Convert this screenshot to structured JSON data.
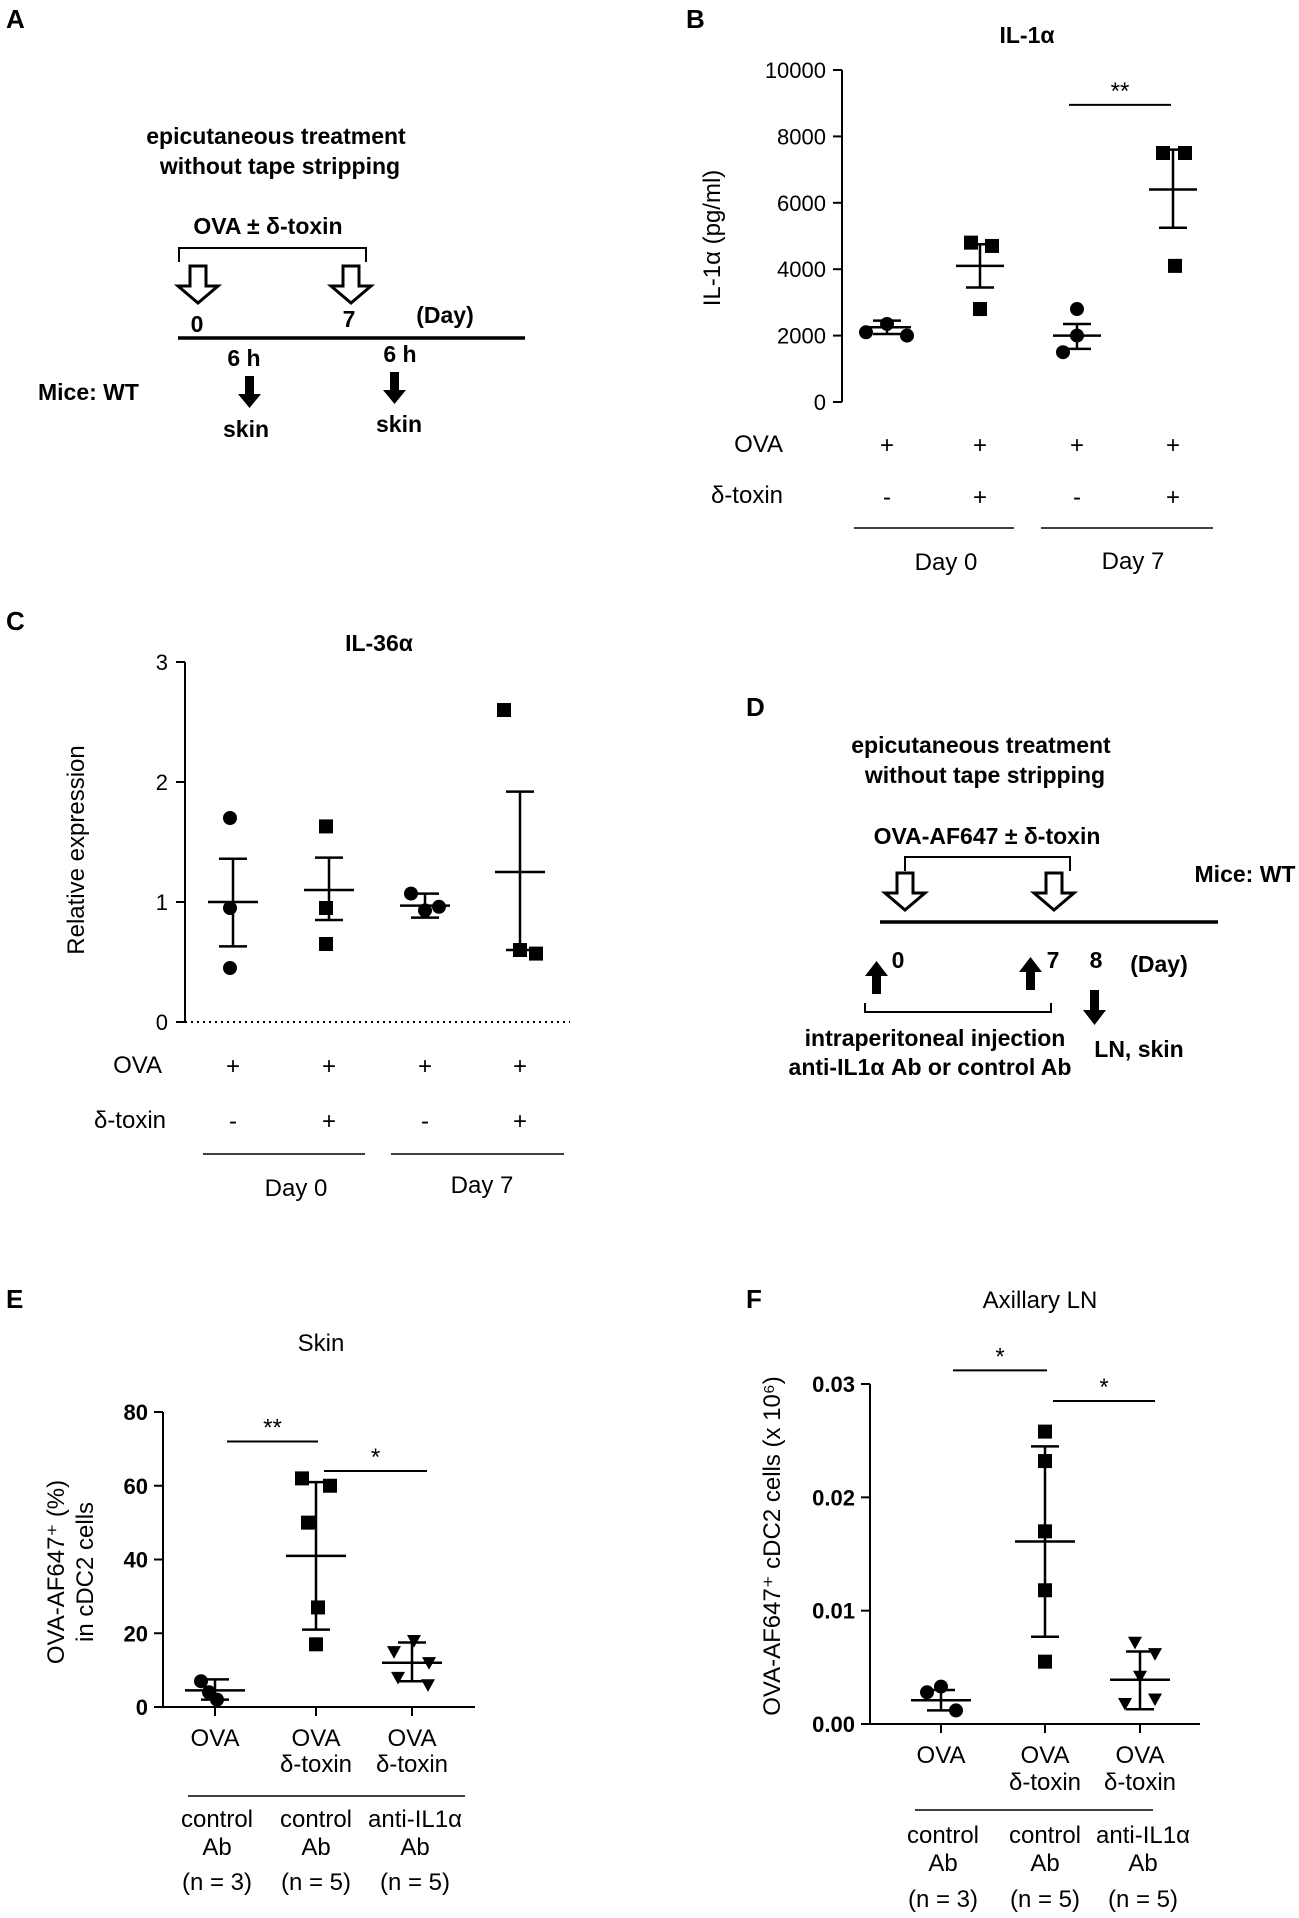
{
  "panel_labels": {
    "a": "A",
    "b": "B",
    "c": "C",
    "d": "D",
    "e": "E",
    "f": "F"
  },
  "schemes": {
    "a": {
      "title_line1": "epicutaneous treatment",
      "title_line2": "without tape stripping",
      "treatment": "OVA ± δ-toxin",
      "days": [
        "0",
        "7"
      ],
      "day_unit": "(Day)",
      "sample_times": [
        "6 h",
        "6 h"
      ],
      "sample_labels": [
        "skin",
        "skin"
      ],
      "mice": "Mice: WT"
    },
    "d": {
      "title_line1": "epicutaneous treatment",
      "title_line2": "without tape stripping",
      "treatment": "OVA-AF647 ± δ-toxin",
      "mice": "Mice: WT",
      "days": [
        "0",
        "7",
        "8"
      ],
      "day_unit": "(Day)",
      "injection_line1": "intraperitoneal injection",
      "injection_line2": "anti-IL1α Ab or control Ab",
      "sample": "LN, skin"
    }
  },
  "chart_data": [
    {
      "id": "B",
      "type": "scatter",
      "title": "IL-1α",
      "ylabel": "IL-1α (pg/ml)",
      "ylim": [
        0,
        10000
      ],
      "yticks": [
        "0",
        "2000",
        "4000",
        "6000",
        "8000",
        "10000"
      ],
      "rows": [
        {
          "label": "OVA",
          "values": [
            "+",
            "+",
            "+",
            "+"
          ]
        },
        {
          "label": "δ-toxin",
          "values": [
            "-",
            "+",
            "-",
            "+"
          ]
        }
      ],
      "groups": [
        "Day 0",
        "Day 7"
      ],
      "marker": [
        "circle",
        "square",
        "circle",
        "square"
      ],
      "points": [
        [
          2100,
          2350,
          2000
        ],
        [
          4800,
          4700,
          2800
        ],
        [
          2800,
          1500,
          2000
        ],
        [
          7500,
          7500,
          4100
        ]
      ],
      "mean": [
        2250,
        4100,
        2000,
        6400
      ],
      "error": [
        [
          2050,
          2450
        ],
        [
          3450,
          4750
        ],
        [
          1600,
          2350
        ],
        [
          5250,
          7600
        ]
      ],
      "significance": [
        {
          "from": 2,
          "to": 3,
          "label": "**",
          "y": 8950
        }
      ]
    },
    {
      "id": "C",
      "type": "scatter",
      "title": "IL-36α",
      "ylabel": "Relative expression",
      "ylim": [
        0,
        3
      ],
      "yticks": [
        "0",
        "1",
        "2",
        "3"
      ],
      "rows": [
        {
          "label": "OVA",
          "values": [
            "+",
            "+",
            "+",
            "+"
          ]
        },
        {
          "label": "δ-toxin",
          "values": [
            "-",
            "+",
            "-",
            "+"
          ]
        }
      ],
      "groups": [
        "Day 0",
        "Day 7"
      ],
      "marker": [
        "circle",
        "square",
        "circle",
        "square"
      ],
      "points": [
        [
          1.7,
          0.95,
          0.45
        ],
        [
          1.63,
          0.95,
          0.65
        ],
        [
          1.07,
          0.93,
          0.96
        ],
        [
          2.6,
          0.6,
          0.57
        ]
      ],
      "mean": [
        1.0,
        1.1,
        0.97,
        1.25
      ],
      "error": [
        [
          0.63,
          1.36
        ],
        [
          0.85,
          1.37
        ],
        [
          0.87,
          1.07
        ],
        [
          0.6,
          1.92
        ]
      ],
      "significance": []
    },
    {
      "id": "E",
      "type": "scatter",
      "title": "Skin",
      "ylabel_line1": "OVA-AF647⁺ (%)",
      "ylabel_line2": "in cDC2 cells",
      "ylim": [
        0,
        80
      ],
      "yticks": [
        "0",
        "20",
        "40",
        "60",
        "80"
      ],
      "categories": [
        {
          "line1": "OVA",
          "line2": ""
        },
        {
          "line1": "OVA",
          "line2": "δ-toxin"
        },
        {
          "line1": "OVA",
          "line2": "δ-toxin"
        }
      ],
      "antibodies": [
        {
          "line1": "control",
          "line2": "Ab",
          "n": "(n = 3)"
        },
        {
          "line1": "control",
          "line2": "Ab",
          "n": "(n = 5)"
        },
        {
          "line1": "anti-IL1α",
          "line2": "Ab",
          "n": "(n = 5)"
        }
      ],
      "marker": [
        "circle",
        "square",
        "triangle-down"
      ],
      "points": [
        [
          7,
          2,
          4
        ],
        [
          62,
          60,
          50,
          27,
          17
        ],
        [
          18,
          15,
          12,
          8,
          6
        ]
      ],
      "mean": [
        4.5,
        41,
        12
      ],
      "error": [
        [
          2,
          7.5
        ],
        [
          21,
          61
        ],
        [
          7,
          17.5
        ]
      ],
      "significance": [
        {
          "from": 0,
          "to": 1,
          "label": "**",
          "y": 72
        },
        {
          "from": 1,
          "to": 2,
          "label": "*",
          "y": 64
        }
      ]
    },
    {
      "id": "F",
      "type": "scatter",
      "title": "Axillary LN",
      "ylabel": "OVA-AF647⁺ cDC2 cells (x 10⁶)",
      "ylim": [
        0,
        0.03
      ],
      "yticks": [
        "0.00",
        "0.01",
        "0.02",
        "0.03"
      ],
      "categories": [
        {
          "line1": "OVA",
          "line2": ""
        },
        {
          "line1": "OVA",
          "line2": "δ-toxin"
        },
        {
          "line1": "OVA",
          "line2": "δ-toxin"
        }
      ],
      "antibodies": [
        {
          "line1": "control",
          "line2": "Ab",
          "n": "(n = 3)"
        },
        {
          "line1": "control",
          "line2": "Ab",
          "n": "(n = 5)"
        },
        {
          "line1": "anti-IL1α",
          "line2": "Ab",
          "n": "(n = 5)"
        }
      ],
      "marker": [
        "circle",
        "square",
        "triangle-down"
      ],
      "points": [
        [
          0.0033,
          0.0028,
          0.0012
        ],
        [
          0.0258,
          0.0232,
          0.017,
          0.0118,
          0.0055
        ],
        [
          0.0072,
          0.0062,
          0.0042,
          0.0022,
          0.0018
        ]
      ],
      "mean": [
        0.0021,
        0.0161,
        0.0039
      ],
      "error": [
        [
          0.0012,
          0.003
        ],
        [
          0.0077,
          0.0245
        ],
        [
          0.0013,
          0.0064
        ]
      ],
      "significance": [
        {
          "from": 0,
          "to": 1,
          "label": "*",
          "y": 0.0312
        },
        {
          "from": 1,
          "to": 2,
          "label": "*",
          "y": 0.0285
        }
      ]
    }
  ]
}
